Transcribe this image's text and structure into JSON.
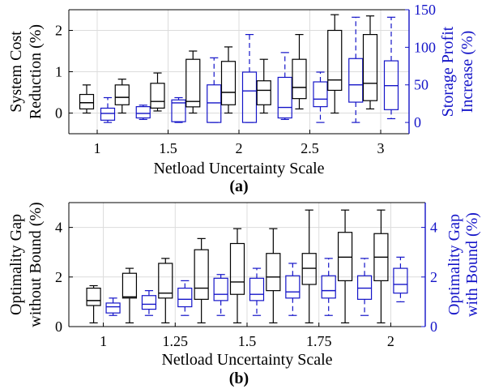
{
  "chart_data": [
    {
      "type": "boxplot",
      "caption": "(a)",
      "xlabel": "Netload Uncertainty Scale",
      "ylabel_left": [
        "System Cost",
        "Reduction (%)"
      ],
      "ylabel_right": [
        "Storage Profit",
        "Increase (%)"
      ],
      "x_ticks": [
        "1",
        "1.5",
        "2",
        "2.5",
        "3"
      ],
      "x_tick_positions": [
        1,
        1.5,
        2,
        2.5,
        3
      ],
      "xlim": [
        0.8,
        3.2
      ],
      "ylim_left": [
        -0.5,
        2.5
      ],
      "ylim_right": [
        -15,
        150
      ],
      "y_ticks_left": [
        "0",
        "1",
        "2"
      ],
      "y_ticks_right": [
        "0",
        "50",
        "100",
        "150"
      ],
      "grid": true,
      "colors": {
        "left": "#000000",
        "right": "#1414c8"
      },
      "groups": [
        {
          "x": 1.0,
          "left": {
            "whisker_low": 0.0,
            "q1": 0.1,
            "median": 0.25,
            "q3": 0.45,
            "whisker_high": 0.68
          },
          "right": {
            "whisker_low": 0,
            "q1": 3,
            "median": 12,
            "q3": 19,
            "whisker_high": 33
          }
        },
        {
          "x": 1.25,
          "left": {
            "whisker_low": 0.0,
            "q1": 0.2,
            "median": 0.38,
            "q3": 0.68,
            "whisker_high": 0.82
          },
          "right": {
            "whisker_low": 4,
            "q1": 6,
            "median": 12,
            "q3": 21,
            "whisker_high": 23
          }
        },
        {
          "x": 1.5,
          "left": {
            "whisker_low": 0.05,
            "q1": 0.12,
            "median": 0.28,
            "q3": 0.72,
            "whisker_high": 0.97
          },
          "right": {
            "whisker_low": 0,
            "q1": 1,
            "median": 26,
            "q3": 30,
            "whisker_high": 33
          }
        },
        {
          "x": 1.75,
          "left": {
            "whisker_low": 0.0,
            "q1": 0.15,
            "median": 0.28,
            "q3": 1.3,
            "whisker_high": 1.5
          },
          "right": {
            "whisker_low": 0,
            "q1": 0,
            "median": 26,
            "q3": 50,
            "whisker_high": 86
          }
        },
        {
          "x": 2.0,
          "left": {
            "whisker_low": 0.0,
            "q1": 0.2,
            "median": 0.5,
            "q3": 1.25,
            "whisker_high": 1.6
          },
          "right": {
            "whisker_low": 0,
            "q1": 0,
            "median": 42,
            "q3": 67,
            "whisker_high": 117
          }
        },
        {
          "x": 2.25,
          "left": {
            "whisker_low": 0.0,
            "q1": 0.2,
            "median": 0.55,
            "q3": 0.78,
            "whisker_high": 1.3
          },
          "right": {
            "whisker_low": 4,
            "q1": 6,
            "median": 20,
            "q3": 60,
            "whisker_high": 93
          }
        },
        {
          "x": 2.5,
          "left": {
            "whisker_low": 0.1,
            "q1": 0.35,
            "median": 0.62,
            "q3": 1.3,
            "whisker_high": 1.9
          },
          "right": {
            "whisker_low": 0,
            "q1": 21,
            "median": 31,
            "q3": 54,
            "whisker_high": 67
          }
        },
        {
          "x": 2.75,
          "left": {
            "whisker_low": 0.0,
            "q1": 0.55,
            "median": 0.8,
            "q3": 2.0,
            "whisker_high": 2.38
          },
          "right": {
            "whisker_low": 0,
            "q1": 27,
            "median": 50,
            "q3": 85,
            "whisker_high": 140
          }
        },
        {
          "x": 3.0,
          "left": {
            "whisker_low": 0.1,
            "q1": 0.3,
            "median": 0.72,
            "q3": 1.9,
            "whisker_high": 2.35
          },
          "right": {
            "whisker_low": 5,
            "q1": 17,
            "median": 49,
            "q3": 82,
            "whisker_high": 140
          }
        }
      ]
    },
    {
      "type": "boxplot",
      "caption": "(b)",
      "xlabel": "Netload Uncertainty Scale",
      "ylabel_left": [
        "Optimality Gap",
        "without Bound (%)"
      ],
      "ylabel_right": [
        "Optimality Gap",
        "with Bound (%)"
      ],
      "x_ticks": [
        "1",
        "1.25",
        "1.5",
        "1.75",
        "2"
      ],
      "x_tick_positions": [
        1,
        1.25,
        1.5,
        1.75,
        2
      ],
      "xlim": [
        0.88,
        2.12
      ],
      "ylim_left": [
        0,
        5
      ],
      "ylim_right": [
        0,
        5
      ],
      "y_ticks_left": [
        "0",
        "2",
        "4"
      ],
      "y_ticks_right": [
        "0",
        "2",
        "4"
      ],
      "grid": true,
      "colors": {
        "left": "#000000",
        "right": "#1414c8"
      },
      "groups": [
        {
          "x": 1.0,
          "left": {
            "whisker_low": 0.15,
            "q1": 0.85,
            "median": 1.05,
            "q3": 1.55,
            "whisker_high": 1.65
          },
          "right": {
            "whisker_low": 0.45,
            "q1": 0.55,
            "median": 0.8,
            "q3": 0.95,
            "whisker_high": 1.15
          }
        },
        {
          "x": 1.125,
          "left": {
            "whisker_low": 0.15,
            "q1": 1.15,
            "median": 1.2,
            "q3": 2.15,
            "whisker_high": 2.35
          },
          "right": {
            "whisker_low": 0.45,
            "q1": 0.7,
            "median": 0.9,
            "q3": 1.25,
            "whisker_high": 1.45
          }
        },
        {
          "x": 1.25,
          "left": {
            "whisker_low": 0.15,
            "q1": 1.15,
            "median": 1.35,
            "q3": 2.55,
            "whisker_high": 2.75
          },
          "right": {
            "whisker_low": 0.45,
            "q1": 0.8,
            "median": 1.1,
            "q3": 1.55,
            "whisker_high": 1.85
          }
        },
        {
          "x": 1.375,
          "left": {
            "whisker_low": 0.15,
            "q1": 1.1,
            "median": 1.55,
            "q3": 3.1,
            "whisker_high": 3.55
          },
          "right": {
            "whisker_low": 0.45,
            "q1": 1.05,
            "median": 1.3,
            "q3": 1.95,
            "whisker_high": 2.1
          }
        },
        {
          "x": 1.5,
          "left": {
            "whisker_low": 0.15,
            "q1": 1.3,
            "median": 1.8,
            "q3": 3.35,
            "whisker_high": 3.95
          },
          "right": {
            "whisker_low": 0.45,
            "q1": 1.05,
            "median": 1.3,
            "q3": 1.95,
            "whisker_high": 2.35
          }
        },
        {
          "x": 1.625,
          "left": {
            "whisker_low": 0.15,
            "q1": 1.45,
            "median": 2.0,
            "q3": 2.95,
            "whisker_high": 3.95
          },
          "right": {
            "whisker_low": 0.45,
            "q1": 1.15,
            "median": 1.4,
            "q3": 2.05,
            "whisker_high": 2.55
          }
        },
        {
          "x": 1.75,
          "left": {
            "whisker_low": 0.15,
            "q1": 1.7,
            "median": 2.35,
            "q3": 2.95,
            "whisker_high": 4.7
          },
          "right": {
            "whisker_low": 0.45,
            "q1": 1.15,
            "median": 1.45,
            "q3": 2.05,
            "whisker_high": 2.75
          }
        },
        {
          "x": 1.875,
          "left": {
            "whisker_low": 0.15,
            "q1": 1.85,
            "median": 2.8,
            "q3": 3.8,
            "whisker_high": 4.7
          },
          "right": {
            "whisker_low": 0.45,
            "q1": 1.1,
            "median": 1.55,
            "q3": 2.05,
            "whisker_high": 2.75
          }
        },
        {
          "x": 2.0,
          "left": {
            "whisker_low": 0.15,
            "q1": 1.85,
            "median": 2.8,
            "q3": 3.75,
            "whisker_high": 4.7
          },
          "right": {
            "whisker_low": 1.0,
            "q1": 1.35,
            "median": 1.7,
            "q3": 2.35,
            "whisker_high": 2.8
          }
        }
      ]
    }
  ]
}
